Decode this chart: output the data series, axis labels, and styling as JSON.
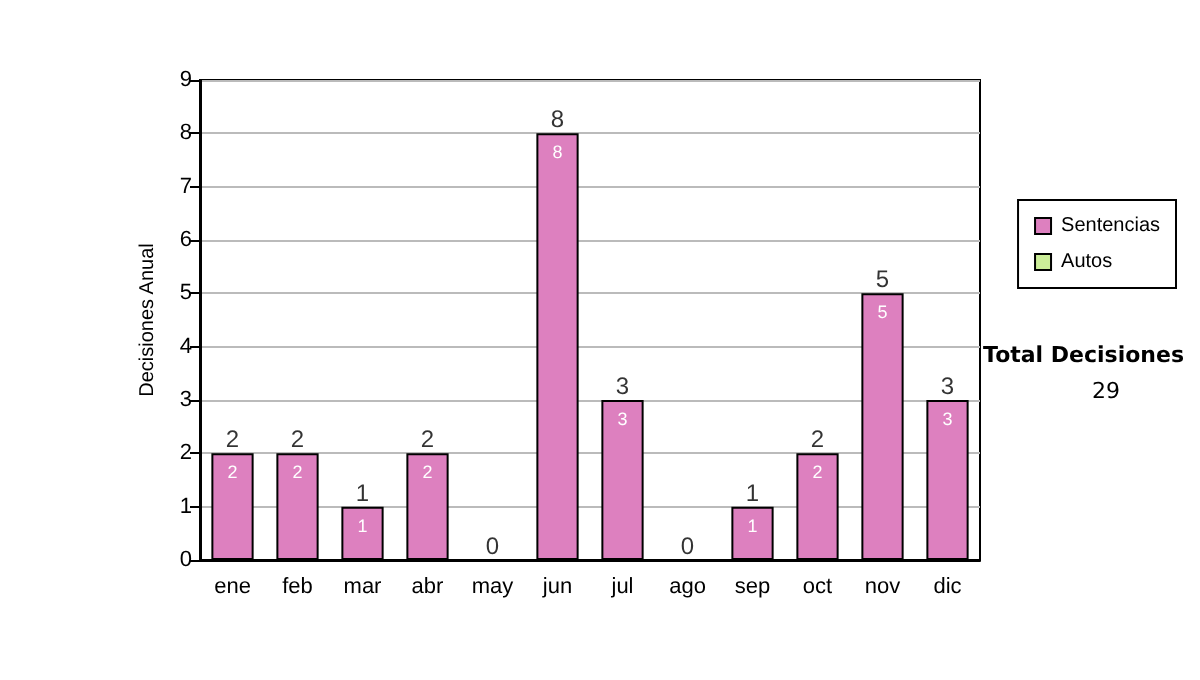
{
  "chart_data": {
    "type": "bar",
    "stacked": true,
    "ylabel": "Decisiones Anual",
    "categories": [
      "ene",
      "feb",
      "mar",
      "abr",
      "may",
      "jun",
      "jul",
      "ago",
      "sep",
      "oct",
      "nov",
      "dic"
    ],
    "series": [
      {
        "name": "Sentencias",
        "color": "#dd80bf",
        "values": [
          2,
          2,
          1,
          2,
          0,
          8,
          3,
          0,
          1,
          2,
          5,
          3
        ],
        "value_labels": [
          "2",
          "2",
          "1",
          "2",
          null,
          "8",
          "3",
          null,
          "1",
          "2",
          "5",
          "3"
        ]
      },
      {
        "name": "Autos",
        "color": "#ccee99",
        "values": [
          0,
          0,
          0,
          0,
          0,
          0,
          0,
          0,
          0,
          0,
          0,
          0
        ]
      }
    ],
    "totals": [
      "2",
      "2",
      "1",
      "2",
      "0",
      "8",
      "3",
      "0",
      "1",
      "2",
      "5",
      "3"
    ],
    "ylim": [
      0,
      9
    ],
    "yticks": [
      0,
      1,
      2,
      3,
      4,
      5,
      6,
      7,
      8,
      9
    ],
    "grid": "y",
    "legend": "right",
    "annotations": [
      "Total Decisiones",
      "29"
    ]
  }
}
